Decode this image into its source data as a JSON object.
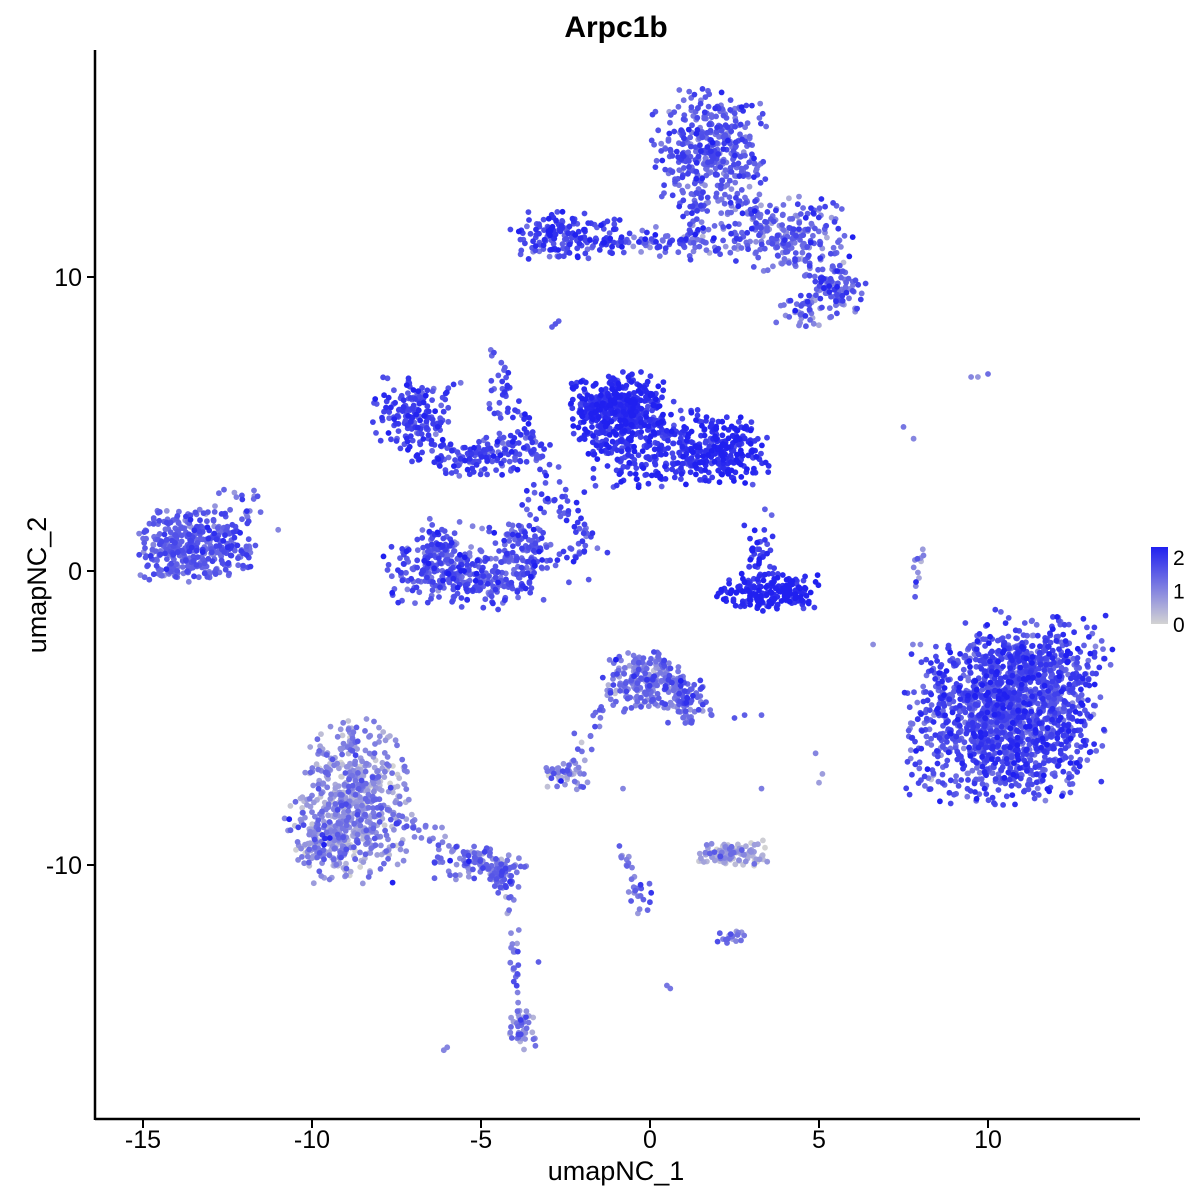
{
  "chart_data": {
    "type": "scatter",
    "title": "Arpc1b",
    "xlabel": "umapNC_1",
    "ylabel": "umapNC_2",
    "xlim": [
      -16.4,
      14.5
    ],
    "ylim": [
      -18.5,
      17.9
    ],
    "xticks": [
      -15,
      -10,
      -5,
      0,
      5,
      10
    ],
    "yticks": [
      -10,
      0,
      10
    ],
    "grid": false,
    "legend": {
      "placement": "right",
      "type": "colorbar",
      "ticks": [
        0,
        1,
        2
      ],
      "range": [
        0,
        2.3
      ],
      "low_color": "#d3d3d3",
      "high_color": "#2020f0"
    },
    "clusters": [
      {
        "x": 10.5,
        "y": -5.0,
        "sx": 1.35,
        "sy": 1.35,
        "n": 1400,
        "expr": 1.7,
        "expr_sd": 0.35
      },
      {
        "x": 11.5,
        "y": -3.2,
        "sx": 1.0,
        "sy": 0.9,
        "n": 300,
        "expr": 1.7,
        "expr_sd": 0.35
      },
      {
        "x": 0.2,
        "y": 0.3,
        "sx": 0.25,
        "sy": 0.25,
        "n": 0,
        "expr": 1.5,
        "expr_sd": 0.3
      },
      {
        "x": 1.8,
        "y": 14.2,
        "sx": 0.8,
        "sy": 1.0,
        "n": 420,
        "expr": 1.5,
        "expr_sd": 0.35
      },
      {
        "x": 4.0,
        "y": 11.5,
        "sx": 1.0,
        "sy": 0.6,
        "n": 220,
        "expr": 1.4,
        "expr_sd": 0.4
      },
      {
        "x": 5.6,
        "y": 9.6,
        "sx": 0.4,
        "sy": 0.4,
        "n": 90,
        "expr": 1.4,
        "expr_sd": 0.4
      },
      {
        "x": 4.6,
        "y": 8.9,
        "sx": 0.4,
        "sy": 0.3,
        "n": 40,
        "expr": 1.2,
        "expr_sd": 0.45
      },
      {
        "x": -2.5,
        "y": 11.4,
        "sx": 0.8,
        "sy": 0.4,
        "n": 150,
        "expr": 1.8,
        "expr_sd": 0.3
      },
      {
        "x": 0.8,
        "y": 11.2,
        "sx": 0.9,
        "sy": 0.3,
        "n": 70,
        "expr": 1.5,
        "expr_sd": 0.4
      },
      {
        "x": -1.0,
        "y": 5.6,
        "sx": 0.65,
        "sy": 0.55,
        "n": 380,
        "expr": 2.1,
        "expr_sd": 0.2
      },
      {
        "x": -0.3,
        "y": 4.3,
        "sx": 0.9,
        "sy": 0.7,
        "n": 260,
        "expr": 2.0,
        "expr_sd": 0.25
      },
      {
        "x": 2.0,
        "y": 4.1,
        "sx": 0.7,
        "sy": 0.55,
        "n": 280,
        "expr": 2.1,
        "expr_sd": 0.25
      },
      {
        "x": -7.0,
        "y": 5.3,
        "sx": 0.55,
        "sy": 0.6,
        "n": 170,
        "expr": 1.8,
        "expr_sd": 0.3
      },
      {
        "x": -5.0,
        "y": 3.9,
        "sx": 1.0,
        "sy": 0.35,
        "n": 140,
        "expr": 1.8,
        "expr_sd": 0.3
      },
      {
        "x": -3.0,
        "y": 1.8,
        "sx": 0.8,
        "sy": 1.2,
        "n": 60,
        "expr": 1.8,
        "expr_sd": 0.3
      },
      {
        "x": -5.5,
        "y": -0.1,
        "sx": 1.1,
        "sy": 0.55,
        "n": 320,
        "expr": 1.6,
        "expr_sd": 0.3
      },
      {
        "x": -6.2,
        "y": 0.7,
        "sx": 0.35,
        "sy": 0.5,
        "n": 70,
        "expr": 1.6,
        "expr_sd": 0.3
      },
      {
        "x": -3.7,
        "y": 0.6,
        "sx": 0.3,
        "sy": 0.5,
        "n": 60,
        "expr": 1.6,
        "expr_sd": 0.3
      },
      {
        "x": 3.5,
        "y": -0.7,
        "sx": 0.75,
        "sy": 0.3,
        "n": 190,
        "expr": 2.2,
        "expr_sd": 0.2
      },
      {
        "x": 3.2,
        "y": 0.6,
        "sx": 0.25,
        "sy": 0.5,
        "n": 40,
        "expr": 2.0,
        "expr_sd": 0.3
      },
      {
        "x": -13.8,
        "y": 0.8,
        "sx": 0.65,
        "sy": 0.6,
        "n": 300,
        "expr": 1.5,
        "expr_sd": 0.3
      },
      {
        "x": -12.5,
        "y": 0.9,
        "sx": 0.45,
        "sy": 0.5,
        "n": 100,
        "expr": 1.6,
        "expr_sd": 0.3
      },
      {
        "x": -12.2,
        "y": 2.4,
        "sx": 0.35,
        "sy": 0.25,
        "n": 12,
        "expr": 1.5,
        "expr_sd": 0.3
      },
      {
        "x": -0.2,
        "y": -3.7,
        "sx": 0.55,
        "sy": 0.5,
        "n": 220,
        "expr": 1.2,
        "expr_sd": 0.4
      },
      {
        "x": 1.0,
        "y": -4.4,
        "sx": 0.4,
        "sy": 0.4,
        "n": 70,
        "expr": 1.3,
        "expr_sd": 0.4
      },
      {
        "x": -8.7,
        "y": -7.8,
        "sx": 0.75,
        "sy": 1.3,
        "n": 520,
        "expr": 0.85,
        "expr_sd": 0.45
      },
      {
        "x": -9.5,
        "y": -9.0,
        "sx": 0.6,
        "sy": 0.7,
        "n": 160,
        "expr": 0.85,
        "expr_sd": 0.45
      },
      {
        "x": -5.2,
        "y": -9.9,
        "sx": 0.7,
        "sy": 0.3,
        "n": 70,
        "expr": 1.2,
        "expr_sd": 0.4
      },
      {
        "x": -4.3,
        "y": -10.4,
        "sx": 0.25,
        "sy": 0.25,
        "n": 40,
        "expr": 1.4,
        "expr_sd": 0.3
      },
      {
        "x": -3.8,
        "y": -15.4,
        "sx": 0.25,
        "sy": 0.4,
        "n": 40,
        "expr": 1.0,
        "expr_sd": 0.45
      },
      {
        "x": 2.4,
        "y": -9.6,
        "sx": 0.5,
        "sy": 0.2,
        "n": 110,
        "expr": 0.6,
        "expr_sd": 0.45
      },
      {
        "x": -2.5,
        "y": -6.9,
        "sx": 0.35,
        "sy": 0.25,
        "n": 50,
        "expr": 1.0,
        "expr_sd": 0.45
      },
      {
        "x": 2.4,
        "y": -12.4,
        "sx": 0.25,
        "sy": 0.15,
        "n": 20,
        "expr": 1.3,
        "expr_sd": 0.4
      },
      {
        "x": -0.3,
        "y": -11.1,
        "sx": 0.2,
        "sy": 0.3,
        "n": 15,
        "expr": 1.3,
        "expr_sd": 0.4
      },
      {
        "x": -4.3,
        "y": 6.0,
        "sx": 0.25,
        "sy": 0.4,
        "n": 25,
        "expr": 1.6,
        "expr_sd": 0.3
      }
    ],
    "trails": [
      {
        "x0": -7.8,
        "y0": -8.1,
        "x1": -4.3,
        "y1": -10.4,
        "n": 70,
        "jitter": 0.18,
        "expr": 1.2
      },
      {
        "x0": -4.2,
        "y0": -11.0,
        "x1": -3.8,
        "y1": -15.6,
        "n": 30,
        "jitter": 0.1,
        "expr": 1.2
      },
      {
        "x0": -2.8,
        "y0": 11.3,
        "x1": 1.2,
        "y1": 11.1,
        "n": 40,
        "jitter": 0.1,
        "expr": 1.6
      },
      {
        "x0": 1.2,
        "y0": 11.0,
        "x1": 1.6,
        "y1": 13.0,
        "n": 25,
        "jitter": 0.15,
        "expr": 1.5
      },
      {
        "x0": 2.5,
        "y0": 12.5,
        "x1": 5.5,
        "y1": 9.5,
        "n": 40,
        "jitter": 0.2,
        "expr": 1.4
      },
      {
        "x0": -4.6,
        "y0": 7.5,
        "x1": -3.0,
        "y1": 3.0,
        "n": 30,
        "jitter": 0.1,
        "expr": 1.7
      },
      {
        "x0": -3.0,
        "y0": 2.6,
        "x1": -1.4,
        "y1": 0.6,
        "n": 20,
        "jitter": 0.15,
        "expr": 1.6
      },
      {
        "x0": -1.8,
        "y0": 0.5,
        "x1": -5.2,
        "y1": 1.6,
        "n": 30,
        "jitter": 0.2,
        "expr": 1.5
      },
      {
        "x0": -3.3,
        "y0": 4.6,
        "x1": -6.3,
        "y1": 3.6,
        "n": 30,
        "jitter": 0.15,
        "expr": 1.7
      },
      {
        "x0": 0.8,
        "y0": -3.6,
        "x1": 1.2,
        "y1": -5.4,
        "n": 20,
        "jitter": 0.1,
        "expr": 1.3
      },
      {
        "x0": -1.2,
        "y0": -4.2,
        "x1": -2.2,
        "y1": -6.6,
        "n": 18,
        "jitter": 0.12,
        "expr": 1.2
      },
      {
        "x0": -0.9,
        "y0": -9.3,
        "x1": -0.4,
        "y1": -11.0,
        "n": 15,
        "jitter": 0.06,
        "expr": 1.2
      },
      {
        "x0": 7.8,
        "y0": -0.8,
        "x1": 8.1,
        "y1": 0.8,
        "n": 12,
        "jitter": 0.08,
        "expr": 1.0
      },
      {
        "x0": -12.0,
        "y0": 1.7,
        "x1": -11.5,
        "y1": 2.8,
        "n": 8,
        "jitter": 0.05,
        "expr": 1.4
      }
    ],
    "points": [
      [
        -6.1,
        -16.3,
        1.0
      ],
      [
        -6.0,
        -16.2,
        1.0
      ],
      [
        0.5,
        -14.1,
        1.2
      ],
      [
        0.6,
        -14.2,
        1.2
      ],
      [
        9.5,
        6.6,
        1.0
      ],
      [
        9.7,
        6.6,
        0.8
      ],
      [
        10.0,
        6.7,
        1.3
      ],
      [
        7.5,
        4.9,
        1.2
      ],
      [
        7.8,
        4.5,
        1.0
      ],
      [
        8.0,
        -2.5,
        1.0
      ],
      [
        5.1,
        -6.9,
        0.7
      ],
      [
        5.0,
        -7.2,
        0.7
      ],
      [
        6.6,
        -2.5,
        0.9
      ],
      [
        3.4,
        2.1,
        1.5
      ],
      [
        3.6,
        1.9,
        1.4
      ],
      [
        -11.0,
        1.4,
        1.0
      ],
      [
        -2.7,
        8.5,
        1.5
      ],
      [
        -2.8,
        8.4,
        1.6
      ],
      [
        -2.9,
        8.3,
        1.5
      ],
      [
        2.5,
        -5.0,
        1.6
      ],
      [
        2.8,
        -4.9,
        1.5
      ],
      [
        3.3,
        -4.9,
        1.4
      ],
      [
        -3.3,
        -13.3,
        1.5
      ],
      [
        3.3,
        -7.4,
        1.1
      ],
      [
        -0.8,
        -7.4,
        1.0
      ],
      [
        -7.0,
        5.9,
        1.6
      ],
      [
        -6.4,
        6.2,
        1.2
      ],
      [
        -5.6,
        6.4,
        1.2
      ],
      [
        4.9,
        -6.2,
        1.0
      ]
    ]
  }
}
